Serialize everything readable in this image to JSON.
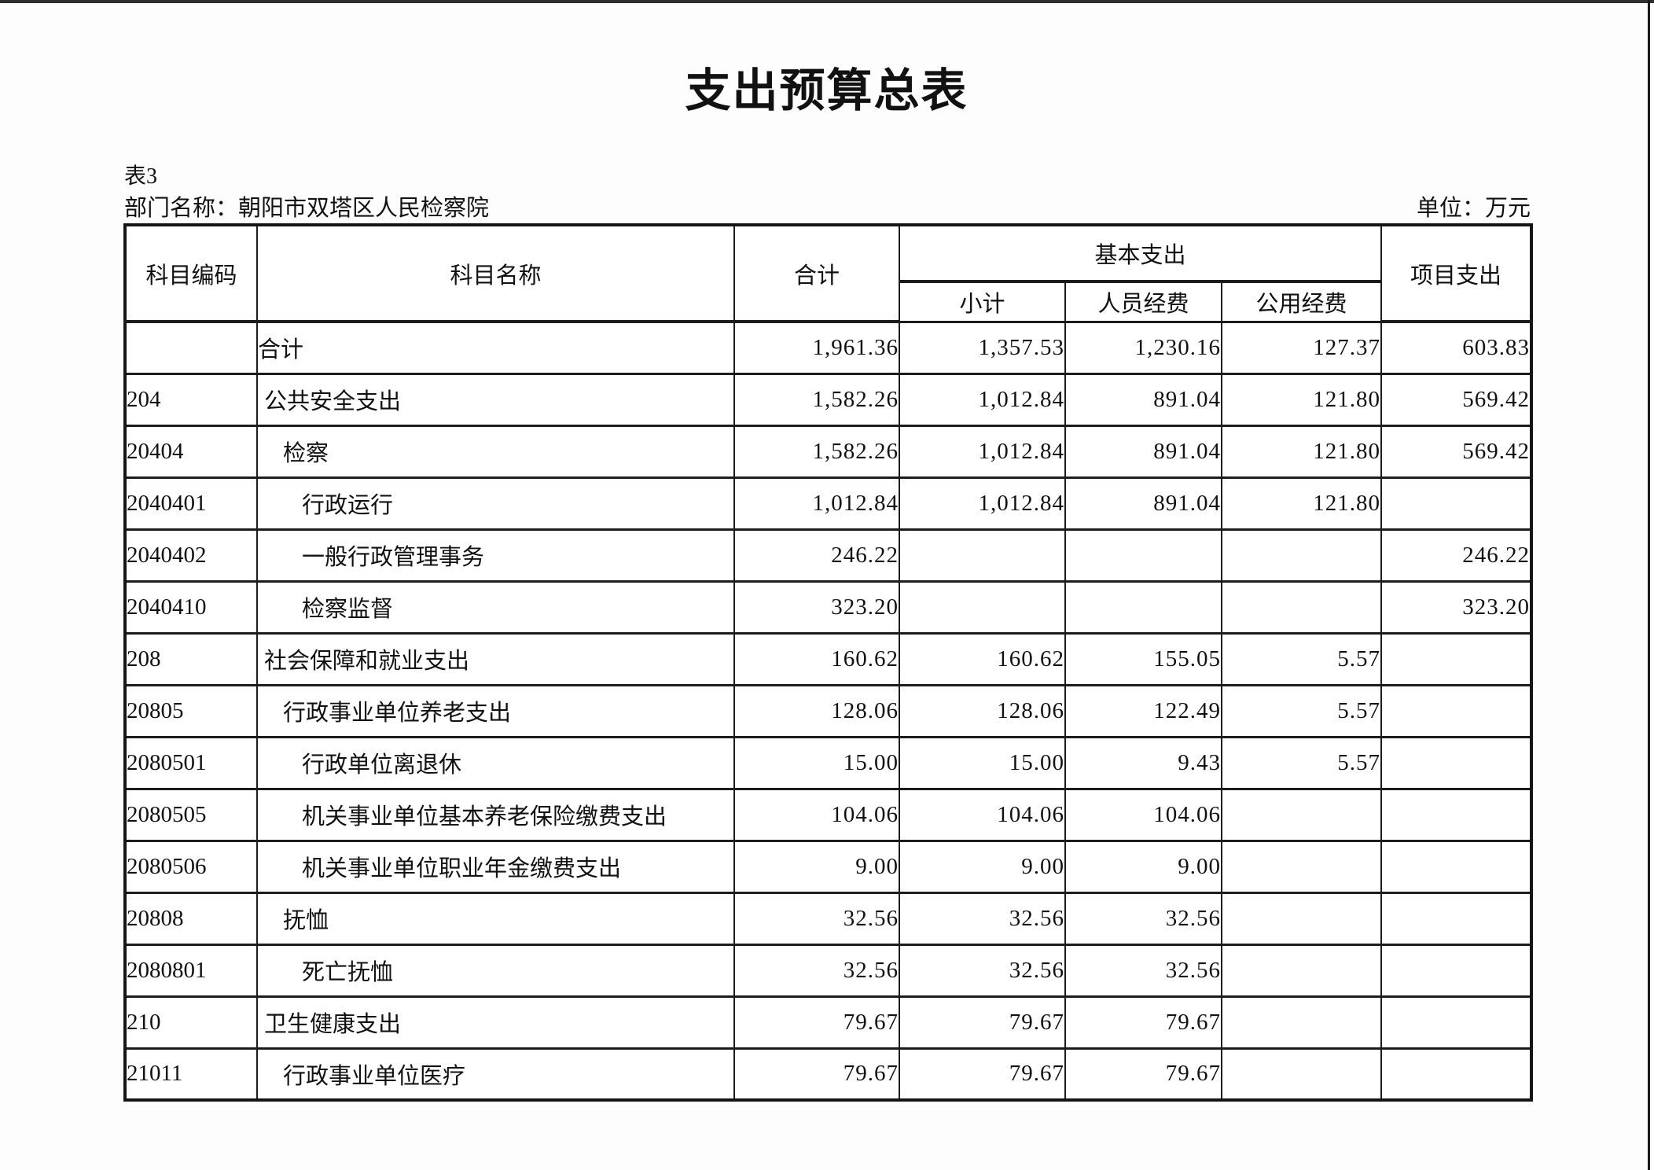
{
  "page": {
    "title": "支出预算总表",
    "table_label": "表3",
    "department": "部门名称：朝阳市双塔区人民检察院",
    "unit": "单位：万元"
  },
  "table": {
    "headers": {
      "code": "科目编码",
      "name": "科目名称",
      "total": "合计",
      "basic_group": "基本支出",
      "basic_subtotal": "小计",
      "personnel": "人员经费",
      "public_funds": "公用经费",
      "project": "项目支出"
    },
    "rows": [
      {
        "code": "",
        "name": "合计",
        "indent": 0,
        "center": true,
        "total": "1,961.36",
        "basic_subtotal": "1,357.53",
        "personnel": "1,230.16",
        "public_funds": "127.37",
        "project": "603.83"
      },
      {
        "code": "204",
        "name": "公共安全支出",
        "indent": 0,
        "center": false,
        "total": "1,582.26",
        "basic_subtotal": "1,012.84",
        "personnel": "891.04",
        "public_funds": "121.80",
        "project": "569.42"
      },
      {
        "code": "20404",
        "name": "检察",
        "indent": 1,
        "center": false,
        "total": "1,582.26",
        "basic_subtotal": "1,012.84",
        "personnel": "891.04",
        "public_funds": "121.80",
        "project": "569.42"
      },
      {
        "code": "2040401",
        "name": "行政运行",
        "indent": 2,
        "center": false,
        "total": "1,012.84",
        "basic_subtotal": "1,012.84",
        "personnel": "891.04",
        "public_funds": "121.80",
        "project": ""
      },
      {
        "code": "2040402",
        "name": "一般行政管理事务",
        "indent": 2,
        "center": false,
        "total": "246.22",
        "basic_subtotal": "",
        "personnel": "",
        "public_funds": "",
        "project": "246.22"
      },
      {
        "code": "2040410",
        "name": "检察监督",
        "indent": 2,
        "center": false,
        "total": "323.20",
        "basic_subtotal": "",
        "personnel": "",
        "public_funds": "",
        "project": "323.20"
      },
      {
        "code": "208",
        "name": "社会保障和就业支出",
        "indent": 0,
        "center": false,
        "total": "160.62",
        "basic_subtotal": "160.62",
        "personnel": "155.05",
        "public_funds": "5.57",
        "project": ""
      },
      {
        "code": "20805",
        "name": "行政事业单位养老支出",
        "indent": 1,
        "center": false,
        "total": "128.06",
        "basic_subtotal": "128.06",
        "personnel": "122.49",
        "public_funds": "5.57",
        "project": ""
      },
      {
        "code": "2080501",
        "name": "行政单位离退休",
        "indent": 2,
        "center": false,
        "total": "15.00",
        "basic_subtotal": "15.00",
        "personnel": "9.43",
        "public_funds": "5.57",
        "project": ""
      },
      {
        "code": "2080505",
        "name": "机关事业单位基本养老保险缴费支出",
        "indent": 2,
        "center": false,
        "total": "104.06",
        "basic_subtotal": "104.06",
        "personnel": "104.06",
        "public_funds": "",
        "project": ""
      },
      {
        "code": "2080506",
        "name": "机关事业单位职业年金缴费支出",
        "indent": 2,
        "center": false,
        "total": "9.00",
        "basic_subtotal": "9.00",
        "personnel": "9.00",
        "public_funds": "",
        "project": ""
      },
      {
        "code": "20808",
        "name": "抚恤",
        "indent": 1,
        "center": false,
        "total": "32.56",
        "basic_subtotal": "32.56",
        "personnel": "32.56",
        "public_funds": "",
        "project": ""
      },
      {
        "code": "2080801",
        "name": "死亡抚恤",
        "indent": 2,
        "center": false,
        "total": "32.56",
        "basic_subtotal": "32.56",
        "personnel": "32.56",
        "public_funds": "",
        "project": ""
      },
      {
        "code": "210",
        "name": "卫生健康支出",
        "indent": 0,
        "center": false,
        "total": "79.67",
        "basic_subtotal": "79.67",
        "personnel": "79.67",
        "public_funds": "",
        "project": ""
      },
      {
        "code": "21011",
        "name": "行政事业单位医疗",
        "indent": 1,
        "center": false,
        "total": "79.67",
        "basic_subtotal": "79.67",
        "personnel": "79.67",
        "public_funds": "",
        "project": ""
      }
    ]
  }
}
